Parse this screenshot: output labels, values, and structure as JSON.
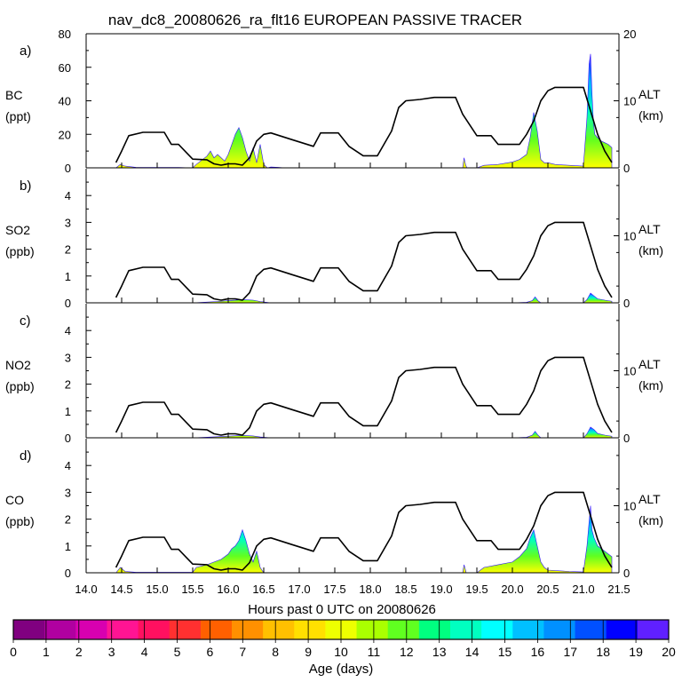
{
  "chart_data": {
    "type": "area",
    "title": "nav_dc8_20080626_ra_flt16 EUROPEAN PASSIVE TRACER",
    "xlabel": "Hours past 0 UTC on 20080626",
    "xlim": [
      14.0,
      21.5
    ],
    "x_tick_labels": [
      "14.0",
      "14.5",
      "15.0",
      "15.5",
      "16.0",
      "16.5",
      "17.0",
      "17.5",
      "18.0",
      "18.5",
      "19.0",
      "19.5",
      "20.0",
      "20.5",
      "21.0",
      "21.5"
    ],
    "altitude_axis": {
      "label": "ALT",
      "units": "(km)",
      "range": [
        0,
        20
      ],
      "tick_labels": [
        "0",
        "10",
        "20"
      ]
    },
    "altitude_km": {
      "x": [
        14.42,
        14.5,
        14.6,
        14.8,
        15.1,
        15.2,
        15.3,
        15.5,
        15.7,
        15.8,
        15.9,
        16.0,
        16.1,
        16.2,
        16.3,
        16.4,
        16.5,
        16.6,
        16.9,
        17.2,
        17.3,
        17.55,
        17.7,
        17.9,
        18.1,
        18.3,
        18.4,
        18.5,
        18.7,
        18.9,
        19.2,
        19.3,
        19.5,
        19.7,
        19.8,
        20.1,
        20.2,
        20.3,
        20.4,
        20.5,
        20.6,
        20.8,
        21.0,
        21.1,
        21.2,
        21.3,
        21.4
      ],
      "y": [
        0.8,
        2.5,
        4.8,
        5.3,
        5.3,
        3.5,
        3.5,
        1.3,
        1.2,
        0.6,
        0.4,
        0.6,
        0.6,
        0.4,
        1.5,
        4.0,
        5.0,
        5.2,
        4.2,
        3.2,
        5.2,
        5.2,
        3.2,
        1.8,
        1.8,
        5.5,
        9.0,
        10.0,
        10.2,
        10.5,
        10.5,
        8.0,
        4.8,
        4.8,
        3.5,
        3.5,
        5.0,
        7.0,
        10.0,
        11.5,
        12.0,
        12.0,
        12.0,
        8.5,
        5.0,
        2.5,
        0.8
      ]
    },
    "panels": [
      {
        "tag": "a)",
        "species": "BC",
        "units": "(ppt)",
        "ylim": [
          0,
          80
        ],
        "y_tick_labels": [
          "0",
          "20",
          "40",
          "60",
          "80"
        ],
        "profile": {
          "x": [
            14.42,
            14.48,
            14.55,
            14.7,
            14.9,
            15.1,
            15.3,
            15.5,
            15.55,
            15.7,
            15.75,
            15.8,
            15.85,
            15.95,
            16.0,
            16.05,
            16.1,
            16.15,
            16.2,
            16.25,
            16.3,
            16.35,
            16.4,
            16.45,
            16.5,
            16.55,
            16.6,
            16.7,
            16.8,
            16.9,
            17.0,
            17.2,
            17.5,
            17.8,
            18.0,
            18.3,
            18.6,
            19.0,
            19.3,
            19.32,
            19.34,
            19.36,
            19.5,
            19.6,
            19.8,
            20.0,
            20.1,
            20.2,
            20.25,
            20.3,
            20.35,
            20.4,
            20.45,
            20.5,
            20.6,
            20.8,
            21.0,
            21.05,
            21.08,
            21.1,
            21.12,
            21.14,
            21.16,
            21.2,
            21.25,
            21.3,
            21.35,
            21.4
          ],
          "y": [
            0,
            2,
            1,
            0.3,
            0.2,
            0.2,
            0.2,
            0,
            2,
            7,
            10,
            6,
            8,
            4,
            8,
            14,
            20,
            24,
            18,
            10,
            4,
            12,
            3,
            14,
            2,
            0,
            0.5,
            0.3,
            0,
            0,
            0,
            0,
            0,
            0,
            0,
            0,
            0,
            0,
            0,
            6,
            2,
            0,
            0,
            1.5,
            2,
            3.5,
            5,
            8,
            18,
            33,
            22,
            5,
            3,
            3,
            2,
            1.5,
            1,
            30,
            62,
            68,
            45,
            28,
            20,
            18,
            16,
            15,
            14,
            12
          ]
        }
      },
      {
        "tag": "b)",
        "species": "SO2",
        "units": "(ppb)",
        "ylim": [
          0,
          5
        ],
        "y_tick_labels": [
          "0",
          "1",
          "2",
          "3",
          "4"
        ],
        "profile": {
          "x": [
            14.42,
            15.5,
            15.85,
            16.0,
            16.2,
            16.35,
            16.45,
            16.6,
            20.0,
            20.2,
            20.28,
            20.32,
            20.36,
            20.4,
            21.0,
            21.05,
            21.1,
            21.15,
            21.2,
            21.3,
            21.4
          ],
          "y": [
            0,
            0,
            0.05,
            0.08,
            0.12,
            0.1,
            0.05,
            0,
            0,
            0.02,
            0.08,
            0.22,
            0.08,
            0,
            0,
            0.12,
            0.36,
            0.25,
            0.15,
            0.1,
            0.06
          ]
        }
      },
      {
        "tag": "c)",
        "species": "NO2",
        "units": "(ppb)",
        "ylim": [
          0,
          5
        ],
        "y_tick_labels": [
          "0",
          "1",
          "2",
          "3",
          "4"
        ],
        "profile": {
          "x": [
            14.42,
            15.5,
            15.85,
            16.0,
            16.2,
            16.35,
            16.45,
            16.6,
            20.0,
            20.2,
            20.28,
            20.32,
            20.36,
            20.4,
            21.0,
            21.05,
            21.1,
            21.15,
            21.2,
            21.3,
            21.4
          ],
          "y": [
            0,
            0,
            0.04,
            0.06,
            0.09,
            0.07,
            0.03,
            0,
            0,
            0.02,
            0.1,
            0.24,
            0.1,
            0,
            0,
            0.15,
            0.4,
            0.3,
            0.16,
            0.1,
            0.06
          ]
        }
      },
      {
        "tag": "d)",
        "species": "CO",
        "units": "(ppb)",
        "ylim": [
          0,
          5
        ],
        "y_tick_labels": [
          "0",
          "1",
          "2",
          "3",
          "4"
        ],
        "profile": {
          "x": [
            14.42,
            14.48,
            14.55,
            14.7,
            15.1,
            15.3,
            15.5,
            15.55,
            15.7,
            15.8,
            15.9,
            16.0,
            16.05,
            16.1,
            16.15,
            16.2,
            16.25,
            16.3,
            16.35,
            16.4,
            16.45,
            16.5,
            16.6,
            19.3,
            19.32,
            19.35,
            19.5,
            19.6,
            19.8,
            20.0,
            20.1,
            20.2,
            20.25,
            20.3,
            20.35,
            20.4,
            20.45,
            20.5,
            20.8,
            21.0,
            21.05,
            21.08,
            21.1,
            21.12,
            21.15,
            21.2,
            21.25,
            21.3,
            21.4
          ],
          "y": [
            0,
            0.2,
            0.05,
            0.02,
            0.02,
            0.02,
            0.02,
            0.2,
            0.3,
            0.4,
            0.5,
            0.7,
            0.9,
            1.0,
            1.2,
            1.6,
            1.2,
            0.7,
            0.4,
            0.8,
            0.2,
            0,
            0,
            0,
            0.3,
            0,
            0,
            0.2,
            0.3,
            0.4,
            0.6,
            0.9,
            1.3,
            1.6,
            1.0,
            0.4,
            0.2,
            0.1,
            0.05,
            0.03,
            1.0,
            1.9,
            2.5,
            1.6,
            1.3,
            1.0,
            0.9,
            0.8,
            0.6
          ]
        }
      }
    ],
    "colorbar": {
      "label": "Age (days)",
      "tick_labels": [
        "0",
        "1",
        "2",
        "3",
        "4",
        "5",
        "6",
        "7",
        "8",
        "9",
        "10",
        "11",
        "12",
        "13",
        "14",
        "15",
        "16",
        "17",
        "18",
        "19",
        "20"
      ],
      "colors": [
        "#800080",
        "#b000a0",
        "#d800b0",
        "#ff1493",
        "#ff1060",
        "#ff3030",
        "#ff6000",
        "#ff9000",
        "#ffc000",
        "#ffe000",
        "#eeff00",
        "#aaff00",
        "#60ff20",
        "#00ff80",
        "#00ffc0",
        "#00ffff",
        "#00c0ff",
        "#0090ff",
        "#0050ff",
        "#0000ff",
        "#6020ff"
      ]
    }
  }
}
